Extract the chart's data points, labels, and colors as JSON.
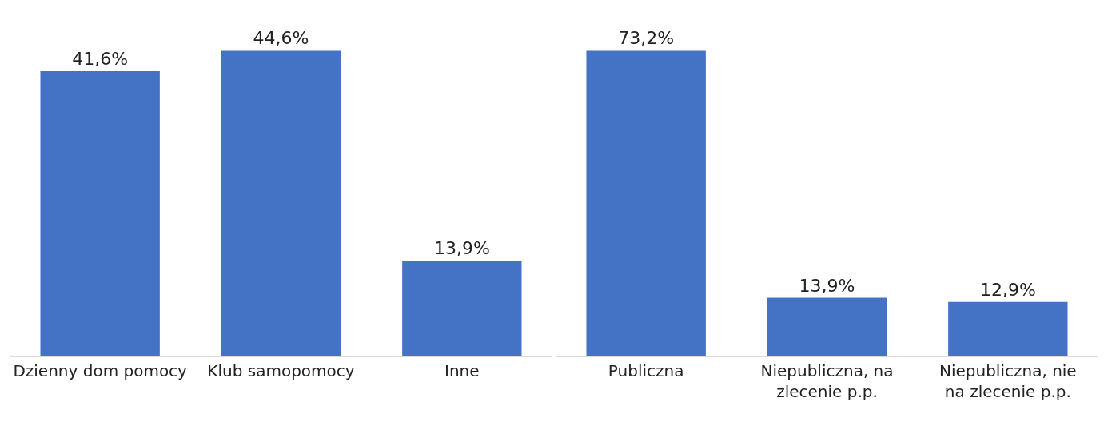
{
  "chart_data": [
    {
      "type": "bar",
      "categories": [
        "Dzienny dom pomocy",
        "Klub samopomocy",
        "Inne"
      ],
      "values": [
        41.6,
        44.6,
        13.9
      ],
      "value_labels": [
        "41,6%",
        "44,6%",
        "13,9%"
      ],
      "color": "#4472c4",
      "grid": false
    },
    {
      "type": "bar",
      "categories": [
        "Publiczna",
        "Niepubliczna, na zlecenie p.p.",
        "Niepubliczna, nie na zlecenie p.p."
      ],
      "values": [
        73.2,
        13.9,
        12.9
      ],
      "value_labels": [
        "73,2%",
        "13,9%",
        "12,9%"
      ],
      "color": "#4472c4",
      "grid": false
    }
  ]
}
